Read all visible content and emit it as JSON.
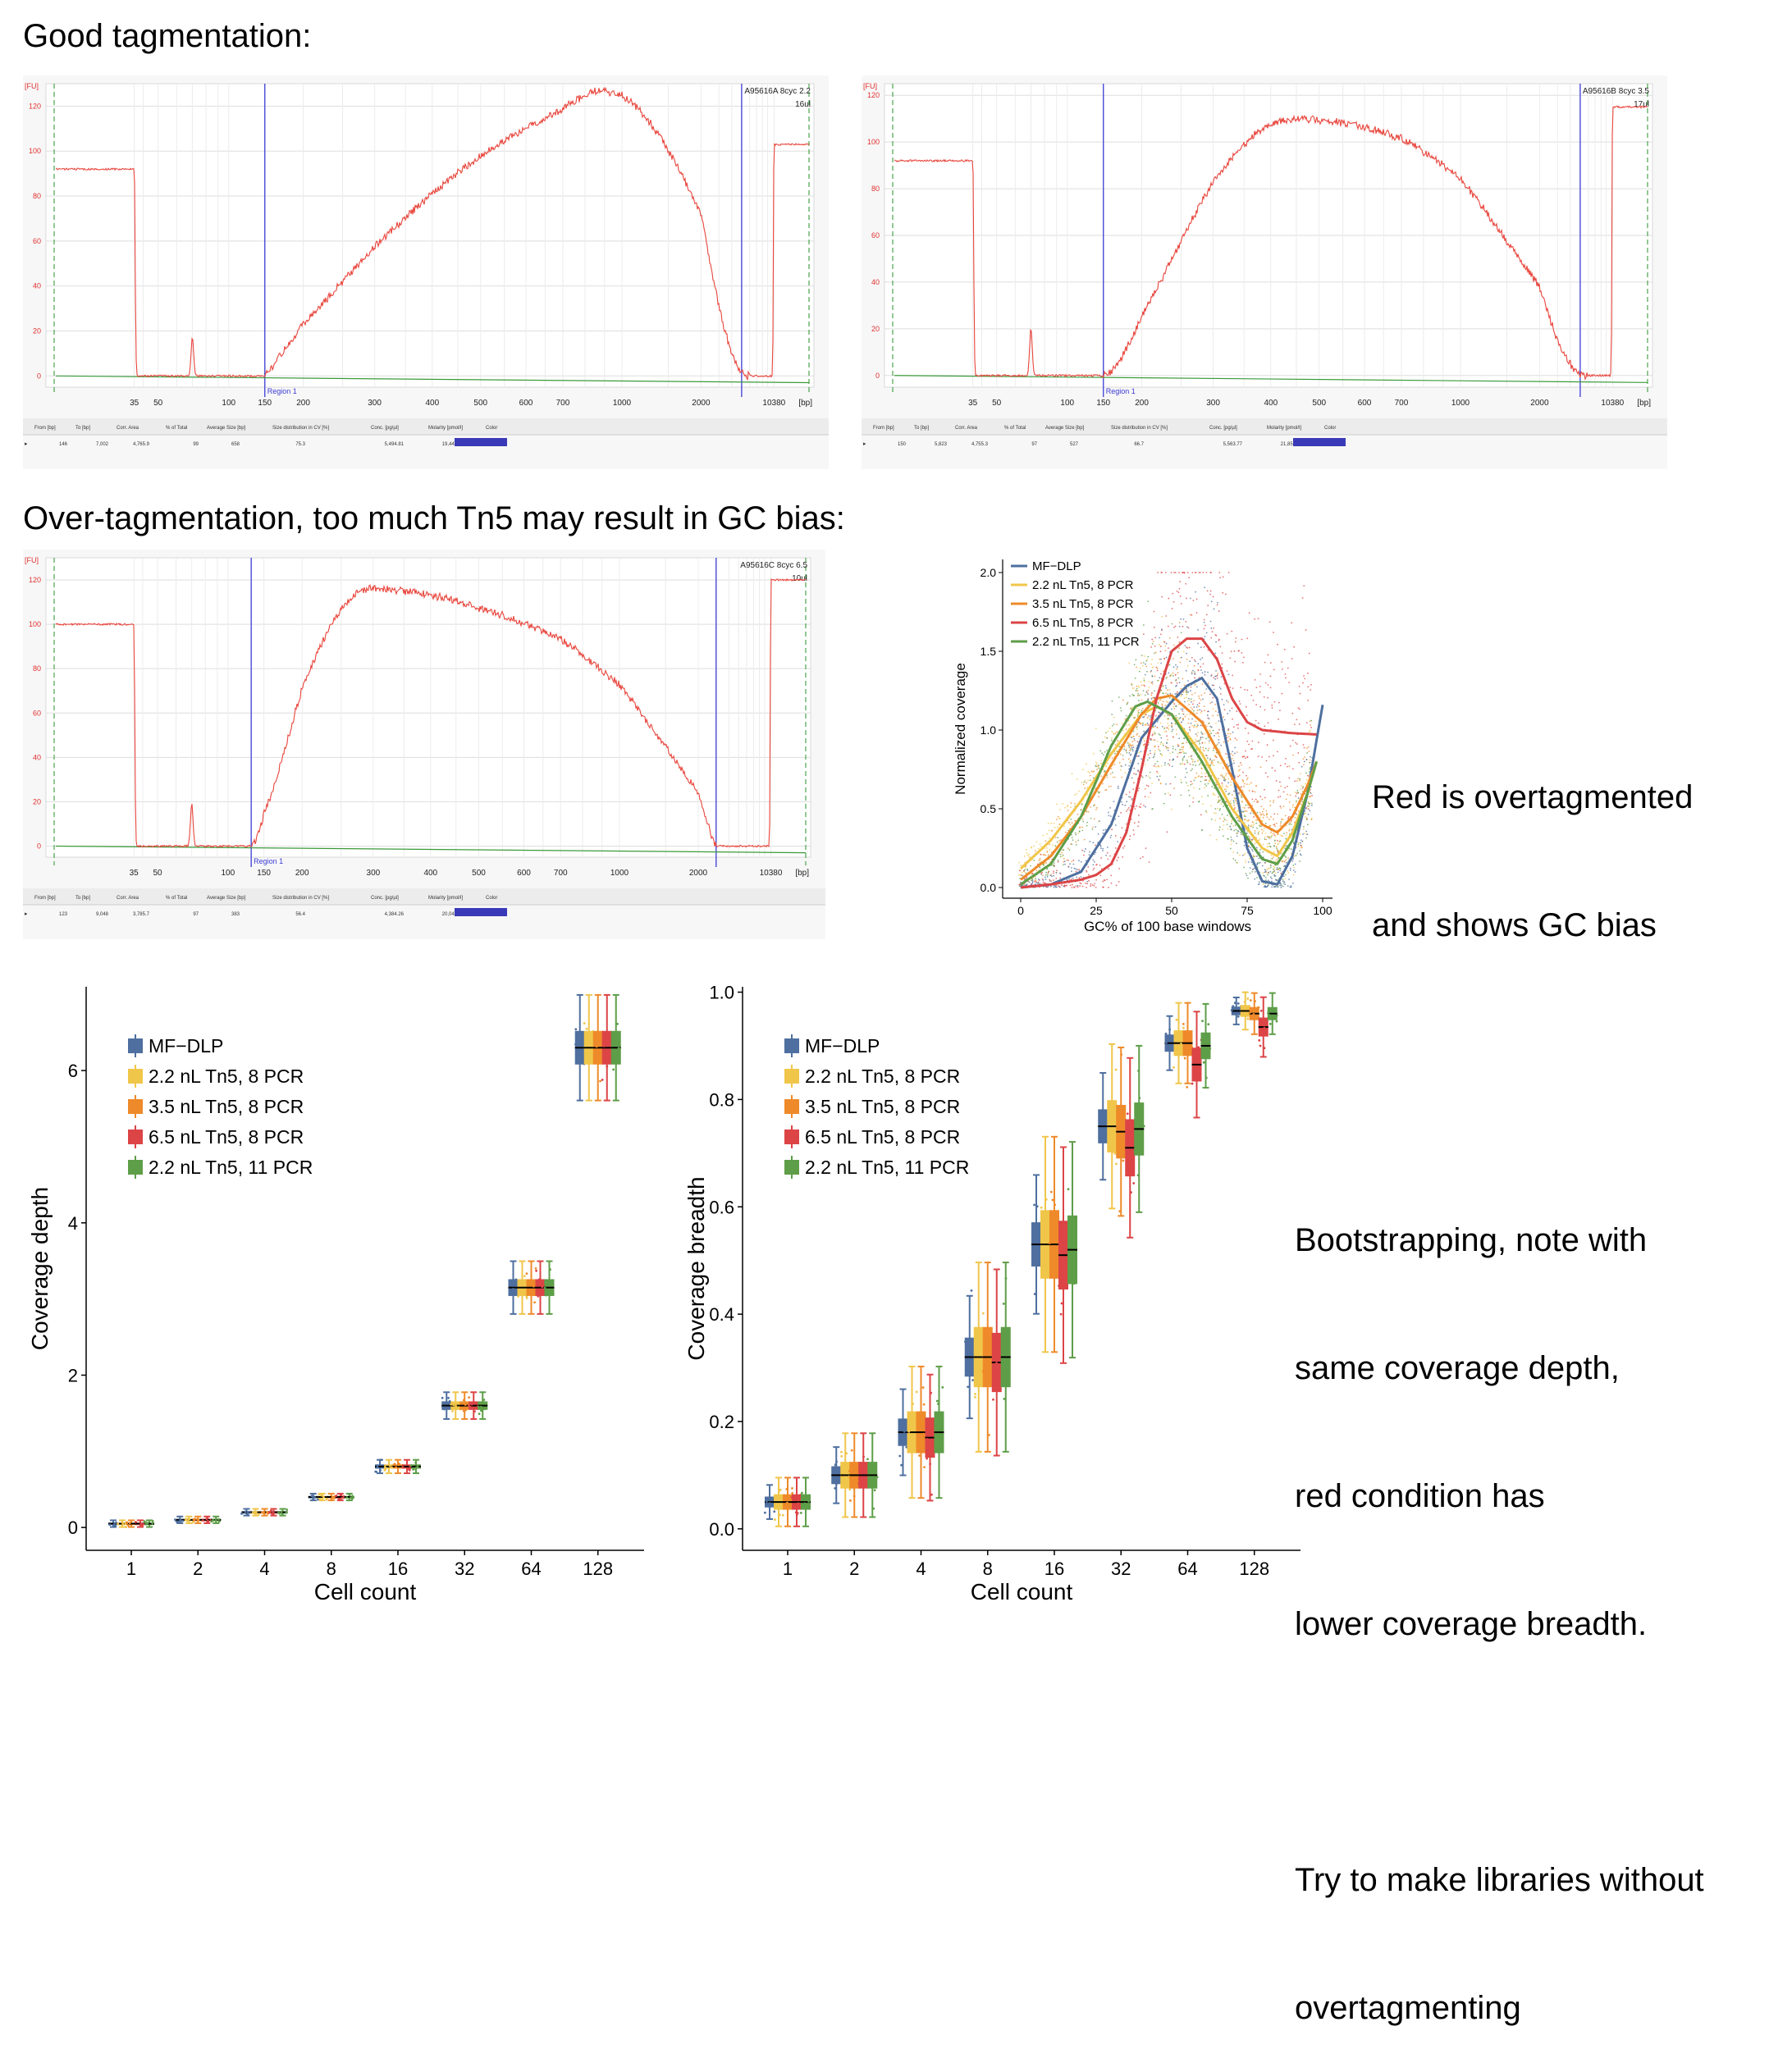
{
  "headings": {
    "good": "Good tagmentation:",
    "over": "Over-tagmentation, too much Tn5 may result in GC bias:"
  },
  "notes": {
    "gc": [
      "Red is overtagmented",
      "and shows GC bias"
    ],
    "bootstrap": [
      "Bootstrapping, note with",
      "same coverage depth,",
      "red condition has",
      "lower coverage breadth.",
      "",
      "Try to make libraries without",
      "overtagmenting"
    ]
  },
  "colors": {
    "trace": "#e8453c",
    "baseline": "#3a9a3a",
    "region_line": "#3b3bd6",
    "mf_dlp": "#4e6f9f",
    "tn5_22_8": "#f0c64a",
    "tn5_35_8": "#ee8a2a",
    "tn5_65_8": "#dc4446",
    "tn5_22_11": "#5e9e48"
  },
  "chart_data": [
    {
      "type": "line",
      "id": "bio_a",
      "sample": "A95616A 8cyc 2.2",
      "volume": "16ul",
      "ylabel": "[FU]",
      "xlabel": "[bp]",
      "ylim": [
        -5,
        130
      ],
      "yticks": [
        0,
        20,
        40,
        60,
        80,
        100,
        120
      ],
      "xticks": [
        "35",
        "50",
        "100",
        "150",
        "200",
        "300",
        "400",
        "500",
        "600",
        "700",
        "1000",
        "2000",
        "10380"
      ],
      "region_label": "Region 1",
      "table_headers": [
        "From [bp]",
        "To [bp]",
        "Corr. Area",
        "% of Total",
        "Average Size [bp]",
        "Size distribution in CV [%]",
        "Conc. [pg/µl]",
        "Molarity [pmol/l]",
        "Color"
      ],
      "table_row": [
        "146",
        "7,002",
        "4,765.9",
        "99",
        "658",
        "75.3",
        "5,494.81",
        "19,447.8"
      ],
      "peaks": [
        {
          "bp": 35,
          "fu": 92
        },
        {
          "bp": 70,
          "fu": 17
        },
        {
          "bp": 10380,
          "fu": 103
        }
      ],
      "smear": {
        "start_bp": 150,
        "peak_bp": 850,
        "peak_fu": 127,
        "end_bp": 6000
      }
    },
    {
      "type": "line",
      "id": "bio_b",
      "sample": "A95616B 8cyc 3.5",
      "volume": "17ul",
      "ylabel": "[FU]",
      "xlabel": "[bp]",
      "ylim": [
        -5,
        125
      ],
      "yticks": [
        0,
        20,
        40,
        60,
        80,
        100,
        120
      ],
      "xticks": [
        "35",
        "50",
        "100",
        "150",
        "200",
        "300",
        "400",
        "500",
        "600",
        "700",
        "1000",
        "2000",
        "10380"
      ],
      "region_label": "Region 1",
      "table_headers": [
        "From [bp]",
        "To [bp]",
        "Corr. Area",
        "% of Total",
        "Average Size [bp]",
        "Size distribution in CV [%]",
        "Conc. [pg/µl]",
        "Molarity [pmol/l]",
        "Color"
      ],
      "table_row": [
        "150",
        "5,823",
        "4,755.3",
        "97",
        "527",
        "66.7",
        "5,563.77",
        "21,856.5"
      ],
      "peaks": [
        {
          "bp": 35,
          "fu": 92
        },
        {
          "bp": 70,
          "fu": 20
        },
        {
          "bp": 10380,
          "fu": 115
        }
      ],
      "smear": {
        "start_bp": 150,
        "peak_bp": 450,
        "peak_fu": 110,
        "end_bp": 6000
      }
    },
    {
      "type": "line",
      "id": "bio_c",
      "sample": "A95616C 8cyc 6.5",
      "volume": "10ul",
      "ylabel": "[FU]",
      "xlabel": "[bp]",
      "ylim": [
        -5,
        130
      ],
      "yticks": [
        0,
        20,
        40,
        60,
        80,
        100,
        120
      ],
      "xticks": [
        "35",
        "50",
        "100",
        "150",
        "200",
        "300",
        "400",
        "500",
        "600",
        "700",
        "1000",
        "2000",
        "10380"
      ],
      "region_label": "Region 1",
      "table_headers": [
        "From [bp]",
        "To [bp]",
        "Corr. Area",
        "% of Total",
        "Average Size [bp]",
        "Size distribution in CV [%]",
        "Conc. [pg/µl]",
        "Molarity [pmol/l]",
        "Color"
      ],
      "table_row": [
        "123",
        "9,048",
        "3,785.7",
        "97",
        "383",
        "56.4",
        "4,384.26",
        "20,045.0"
      ],
      "peaks": [
        {
          "bp": 35,
          "fu": 100
        },
        {
          "bp": 70,
          "fu": 19
        },
        {
          "bp": 10380,
          "fu": 120
        }
      ],
      "smear": {
        "start_bp": 130,
        "peak_bp": 295,
        "peak_fu": 116,
        "end_bp": 3000
      }
    },
    {
      "type": "scatter",
      "id": "gc",
      "xlabel": "GC% of 100 base windows",
      "ylabel": "Normalized coverage",
      "xlim": [
        0,
        100
      ],
      "ylim": [
        0,
        2
      ],
      "xticks": [
        0,
        25,
        50,
        75,
        100
      ],
      "yticks": [
        "0.0",
        "0.5",
        "1.0",
        "1.5",
        "2.0"
      ],
      "legend_position": "top-left",
      "series": [
        {
          "name": "MF−DLP",
          "x": [
            0,
            10,
            20,
            30,
            40,
            50,
            55,
            60,
            65,
            70,
            75,
            80,
            85,
            90,
            95,
            100
          ],
          "y": [
            0,
            0.02,
            0.1,
            0.4,
            0.95,
            1.18,
            1.28,
            1.33,
            1.2,
            0.75,
            0.25,
            0.04,
            0.02,
            0.2,
            0.6,
            1.16
          ]
        },
        {
          "name": "2.2 nL Tn5, 8 PCR",
          "x": [
            0,
            10,
            20,
            30,
            40,
            45,
            50,
            60,
            70,
            80,
            85,
            90,
            95,
            98
          ],
          "y": [
            0.12,
            0.3,
            0.55,
            0.85,
            1.1,
            1.15,
            1.1,
            0.85,
            0.5,
            0.25,
            0.2,
            0.35,
            0.6,
            0.8
          ]
        },
        {
          "name": "3.5 nL Tn5, 8 PCR",
          "x": [
            0,
            10,
            20,
            30,
            40,
            45,
            50,
            60,
            70,
            80,
            85,
            90,
            95,
            98
          ],
          "y": [
            0.05,
            0.2,
            0.45,
            0.78,
            1.1,
            1.2,
            1.22,
            1.05,
            0.7,
            0.4,
            0.35,
            0.45,
            0.65,
            0.8
          ]
        },
        {
          "name": "6.5 nL Tn5, 8 PCR",
          "x": [
            0,
            10,
            20,
            25,
            30,
            35,
            40,
            45,
            50,
            55,
            60,
            65,
            70,
            75,
            80,
            90,
            100
          ],
          "y": [
            0,
            0.02,
            0.05,
            0.08,
            0.15,
            0.35,
            0.75,
            1.2,
            1.5,
            1.58,
            1.58,
            1.45,
            1.2,
            1.05,
            1.0,
            0.98,
            0.97
          ]
        },
        {
          "name": "2.2 nL Tn5, 11 PCR",
          "x": [
            0,
            10,
            20,
            30,
            38,
            42,
            50,
            60,
            70,
            80,
            85,
            90,
            95,
            98
          ],
          "y": [
            0.02,
            0.15,
            0.45,
            0.9,
            1.15,
            1.18,
            1.1,
            0.8,
            0.45,
            0.18,
            0.15,
            0.3,
            0.6,
            0.8
          ]
        }
      ]
    },
    {
      "type": "box",
      "id": "depth",
      "xlabel": "Cell count",
      "ylabel": "Coverage depth",
      "ylim": [
        -0.3,
        7.1
      ],
      "yticks": [
        0,
        2,
        4,
        6
      ],
      "categories": [
        "1",
        "2",
        "4",
        "8",
        "16",
        "32",
        "64",
        "128"
      ],
      "legend_position": "top-left",
      "series": [
        {
          "name": "MF−DLP",
          "medians": [
            0.05,
            0.1,
            0.2,
            0.4,
            0.8,
            1.6,
            3.15,
            6.3
          ]
        },
        {
          "name": "2.2 nL Tn5, 8 PCR",
          "medians": [
            0.05,
            0.1,
            0.2,
            0.4,
            0.8,
            1.6,
            3.15,
            6.3
          ]
        },
        {
          "name": "3.5 nL Tn5, 8 PCR",
          "medians": [
            0.05,
            0.1,
            0.2,
            0.4,
            0.8,
            1.6,
            3.15,
            6.3
          ]
        },
        {
          "name": "6.5 nL Tn5, 8 PCR",
          "medians": [
            0.05,
            0.1,
            0.2,
            0.4,
            0.8,
            1.6,
            3.15,
            6.3
          ]
        },
        {
          "name": "2.2 nL Tn5, 11 PCR",
          "medians": [
            0.05,
            0.1,
            0.2,
            0.4,
            0.8,
            1.6,
            3.15,
            6.3
          ]
        }
      ]
    },
    {
      "type": "box",
      "id": "breadth",
      "xlabel": "Cell count",
      "ylabel": "Coverage breadth",
      "ylim": [
        -0.04,
        1.01
      ],
      "yticks": [
        "0.0",
        "0.2",
        "0.4",
        "0.6",
        "0.8",
        "1.0"
      ],
      "categories": [
        "1",
        "2",
        "4",
        "8",
        "16",
        "32",
        "64",
        "128"
      ],
      "legend_position": "top-left",
      "series": [
        {
          "name": "MF−DLP",
          "medians": [
            0.05,
            0.1,
            0.18,
            0.32,
            0.53,
            0.75,
            0.905,
            0.965
          ]
        },
        {
          "name": "2.2 nL Tn5, 8 PCR",
          "medians": [
            0.05,
            0.1,
            0.18,
            0.32,
            0.53,
            0.75,
            0.905,
            0.965
          ]
        },
        {
          "name": "3.5 nL Tn5, 8 PCR",
          "medians": [
            0.05,
            0.1,
            0.18,
            0.32,
            0.53,
            0.74,
            0.905,
            0.96
          ]
        },
        {
          "name": "6.5 nL Tn5, 8 PCR",
          "medians": [
            0.05,
            0.1,
            0.17,
            0.31,
            0.51,
            0.71,
            0.865,
            0.935
          ]
        },
        {
          "name": "2.2 nL Tn5, 11 PCR",
          "medians": [
            0.05,
            0.1,
            0.18,
            0.32,
            0.52,
            0.745,
            0.9,
            0.96
          ]
        }
      ]
    }
  ]
}
